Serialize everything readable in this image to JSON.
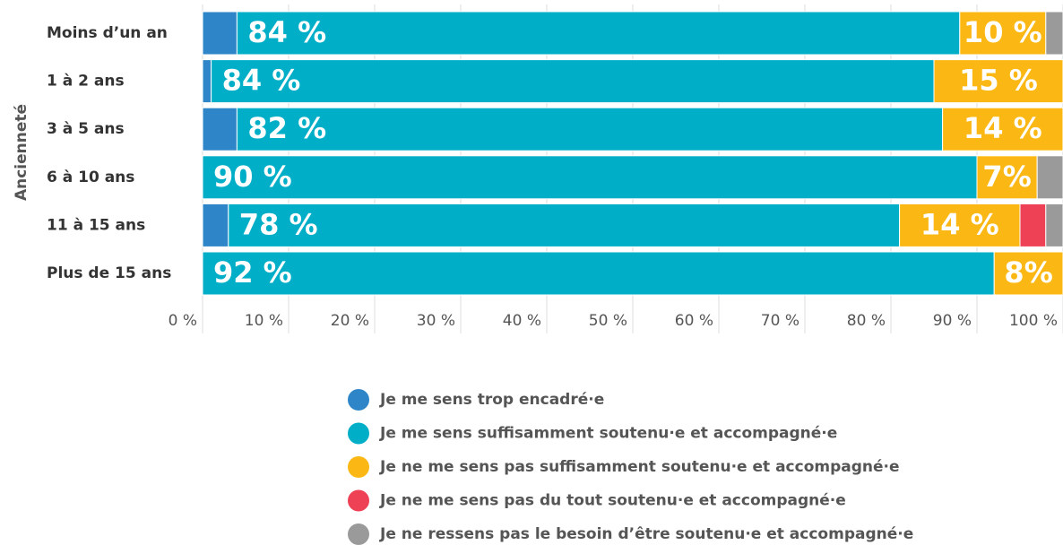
{
  "chart_data": {
    "type": "stacked-barh",
    "ylabel": "Ancienneté",
    "categories": [
      "Moins d’un an",
      "1 à 2 ans",
      "3 à 5 ans",
      "6 à 10 ans",
      "11 à 15 ans",
      "Plus de 15 ans"
    ],
    "series": [
      {
        "name": "Je me sens trop encadré·e",
        "color": "#2e86c9",
        "values": [
          4,
          1,
          4,
          0,
          3,
          0
        ]
      },
      {
        "name": "Je me sens suffisamment soutenu·e et accompagné·e",
        "color": "#00aec7",
        "values": [
          84,
          84,
          82,
          90,
          78,
          92
        ],
        "value_labels": [
          "84 %",
          "84 %",
          "82 %",
          "90 %",
          "78 %",
          "92 %"
        ]
      },
      {
        "name": "Je ne me sens pas suffisamment soutenu·e et accompagné·e",
        "color": "#fbb814",
        "values": [
          10,
          15,
          14,
          7,
          14,
          8
        ],
        "value_labels": [
          "10 %",
          "15 %",
          "14 %",
          "7%",
          "14 %",
          "8%"
        ]
      },
      {
        "name": "Je ne me sens pas du tout soutenu·e et accompagné·e",
        "color": "#ee4155",
        "values": [
          0,
          0,
          0,
          0,
          3,
          0
        ]
      },
      {
        "name": "Je ne ressens pas le besoin d’être soutenu·e et accompagné·e",
        "color": "#9a9a9a",
        "values": [
          2,
          0,
          0,
          3,
          2,
          0
        ]
      }
    ],
    "xlim": [
      0,
      100
    ],
    "xticks": [
      {
        "value": 0,
        "label": "0 %"
      },
      {
        "value": 10,
        "label": "10 %"
      },
      {
        "value": 20,
        "label": "20 %"
      },
      {
        "value": 30,
        "label": "30 %"
      },
      {
        "value": 40,
        "label": "40 %"
      },
      {
        "value": 50,
        "label": "50 %"
      },
      {
        "value": 60,
        "label": "60 %"
      },
      {
        "value": 70,
        "label": "70 %"
      },
      {
        "value": 80,
        "label": "80 %"
      },
      {
        "value": 90,
        "label": "90 %"
      },
      {
        "value": 100,
        "label": "100 %"
      }
    ],
    "grid": true,
    "legend": "bottom"
  }
}
